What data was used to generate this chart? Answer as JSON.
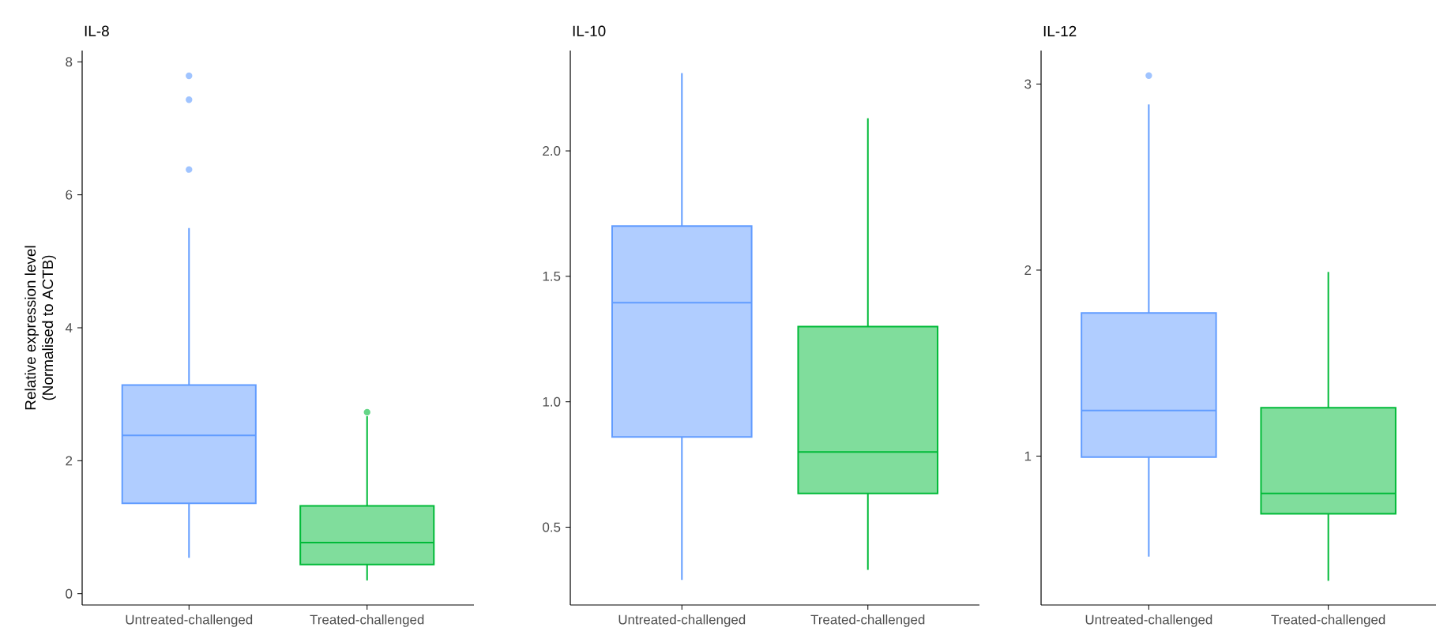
{
  "chart_data": [
    {
      "type": "box",
      "title": "IL-8",
      "ylabel": "Relative expression level\n(Normalised to ACTB)",
      "categories": [
        "Untreated-challenged",
        "Treated-challenged"
      ],
      "colors": [
        "#619cff",
        "#00ba38"
      ],
      "boxes": [
        {
          "low": 0.54,
          "q1": 1.36,
          "median": 2.38,
          "q3": 3.14,
          "high": 5.5,
          "outliers": [
            6.38,
            7.43,
            7.79
          ]
        },
        {
          "low": 0.2,
          "q1": 0.44,
          "median": 0.77,
          "q3": 1.32,
          "high": 2.67,
          "outliers": [
            2.73
          ]
        }
      ],
      "ylim": [
        -0.17,
        8.17
      ],
      "yticks": [
        0,
        2,
        4,
        6,
        8
      ]
    },
    {
      "type": "box",
      "title": "IL-10",
      "categories": [
        "Untreated-challenged",
        "Treated-challenged"
      ],
      "colors": [
        "#619cff",
        "#00ba38"
      ],
      "boxes": [
        {
          "low": 0.29,
          "q1": 0.86,
          "median": 1.395,
          "q3": 1.7,
          "high": 2.31
        },
        {
          "low": 0.33,
          "q1": 0.635,
          "median": 0.8,
          "q3": 1.3,
          "high": 2.13
        }
      ],
      "ylim": [
        0.19,
        2.4
      ],
      "yticks": [
        {
          "value": 0.5,
          "label": "0.5"
        },
        {
          "value": 1.0,
          "label": "1.0"
        },
        {
          "value": 1.5,
          "label": "1.5"
        },
        {
          "value": 2.0,
          "label": "2.0"
        }
      ]
    },
    {
      "type": "box",
      "title": "IL-12",
      "categories": [
        "Untreated-challenged",
        "Treated-challenged"
      ],
      "colors": [
        "#619cff",
        "#00ba38"
      ],
      "boxes": [
        {
          "low": 0.46,
          "q1": 0.995,
          "median": 1.245,
          "q3": 1.77,
          "high": 2.89,
          "outliers": [
            3.045
          ]
        },
        {
          "low": 0.33,
          "q1": 0.69,
          "median": 0.8,
          "q3": 1.26,
          "high": 1.99
        }
      ],
      "ylim": [
        0.2,
        3.18
      ],
      "yticks": [
        1,
        2,
        3
      ]
    }
  ]
}
